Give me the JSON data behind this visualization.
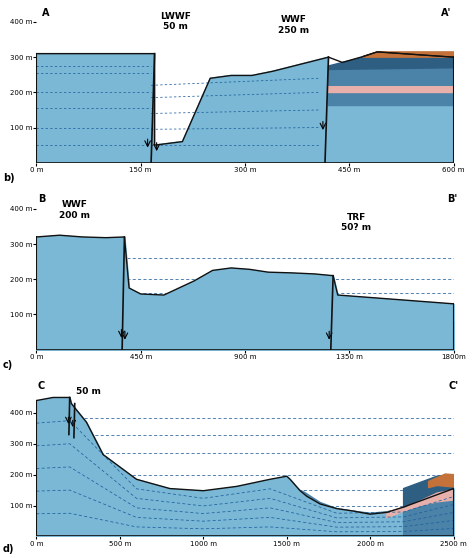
{
  "colors": {
    "light_blue": "#7ab8d5",
    "mid_blue": "#4a82a8",
    "dark_blue": "#2e5f82",
    "pink": "#e8b0aa",
    "orange_brown": "#c4723a",
    "bg": "#ffffff",
    "fault_line": "#111111",
    "dashed_line": "#2060a0"
  },
  "panel_a": {
    "label_left": "A",
    "label_right": "A'",
    "fault_label1": "LWWF\n50 m",
    "fault_label2": "WWF\n250 m",
    "xlim": [
      0,
      600
    ],
    "ylim": [
      0,
      430
    ],
    "yticks": [
      100,
      200,
      300,
      400
    ],
    "ytick_labels": [
      "100 m",
      "200 m",
      "300 m",
      "400 m"
    ],
    "xticks": [
      0,
      150,
      300,
      450,
      600
    ],
    "xtick_labels": [
      "0 m",
      "150 m",
      "300 m",
      "450 m",
      "600 m"
    ],
    "panel_letter": "b)"
  },
  "panel_b": {
    "label_left": "B",
    "label_right": "B'",
    "fault_label1": "WWF\n200 m",
    "fault_label2": "TRF\n50? m",
    "xlim": [
      0,
      1800
    ],
    "ylim": [
      0,
      430
    ],
    "yticks": [
      100,
      200,
      300,
      400
    ],
    "ytick_labels": [
      "100 m",
      "200 m",
      "300 m",
      "400 m"
    ],
    "xticks": [
      0,
      450,
      900,
      1350,
      1800
    ],
    "xtick_labels": [
      "0 m",
      "450 m",
      "900 m",
      "1350 m",
      "1800m"
    ],
    "panel_letter": "c)"
  },
  "panel_c": {
    "label_left": "C",
    "label_right": "C'",
    "fault_label1": "50 m",
    "xlim": [
      0,
      2500
    ],
    "ylim": [
      0,
      490
    ],
    "yticks": [
      100,
      200,
      300,
      400
    ],
    "ytick_labels": [
      "100 m",
      "200 m",
      "300 m",
      "400 m"
    ],
    "xticks": [
      0,
      500,
      1000,
      1500,
      2000,
      2500
    ],
    "xtick_labels": [
      "0 m",
      "500 m",
      "1000 m",
      "1500 m",
      "2000 m",
      "2500 m"
    ],
    "panel_letter": "d)"
  }
}
